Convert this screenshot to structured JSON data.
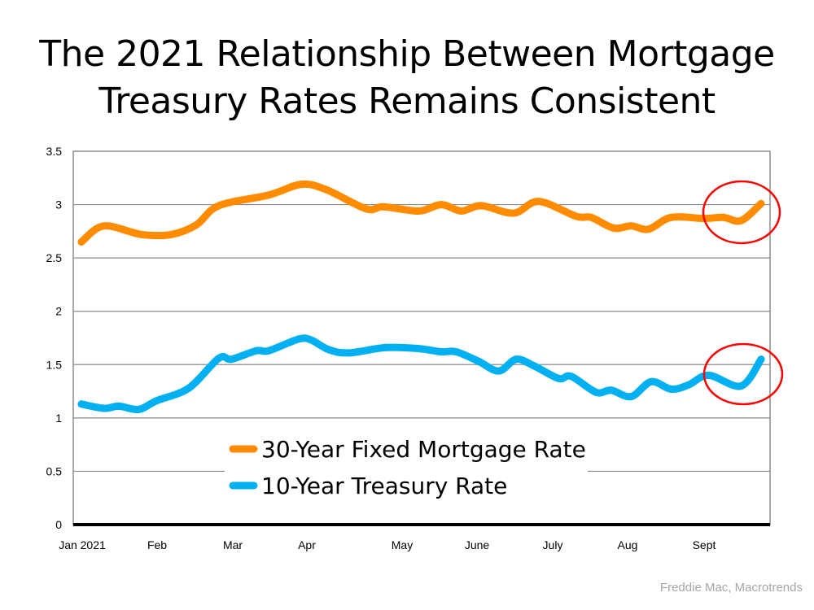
{
  "chart_data": {
    "type": "line",
    "title": "The 2021 Relationship Between Mortgage Treasury Rates Remains Consistent",
    "title_lines": [
      "The 2021 Relationship Between Mortgage",
      "Treasury Rates Remains Consistent"
    ],
    "xlabel": "",
    "ylabel": "",
    "ylim": [
      0,
      3.5
    ],
    "y_ticks": [
      "0",
      "0.5",
      "1",
      "1.5",
      "2",
      "2.5",
      "3",
      "3.5"
    ],
    "x_tick_labels": [
      "Jan 2021",
      "Feb",
      "Mar",
      "Apr",
      "May",
      "June",
      "July",
      "Aug",
      "Sept"
    ],
    "grid": true,
    "legend_placement": "bottom-center",
    "series": [
      {
        "name": "30-Year Fixed Mortgage Rate",
        "color": "#FF8C00",
        "x": [
          "2021-01-01",
          "2021-01-10",
          "2021-01-25",
          "2021-02-06",
          "2021-02-16",
          "2021-02-25",
          "2021-03-17",
          "2021-03-30",
          "2021-04-09",
          "2021-04-25",
          "2021-05-02",
          "2021-05-16",
          "2021-05-25",
          "2021-06-02",
          "2021-06-10",
          "2021-06-23",
          "2021-07-03",
          "2021-07-18",
          "2021-07-24",
          "2021-08-02",
          "2021-08-09",
          "2021-08-16",
          "2021-08-25",
          "2021-09-07",
          "2021-09-15",
          "2021-09-22",
          "2021-09-30"
        ],
        "values": [
          2.65,
          2.8,
          2.72,
          2.72,
          2.81,
          2.99,
          3.09,
          3.19,
          3.14,
          2.96,
          2.98,
          2.94,
          3.0,
          2.94,
          2.99,
          2.92,
          3.03,
          2.89,
          2.88,
          2.78,
          2.8,
          2.77,
          2.88,
          2.87,
          2.88,
          2.85,
          3.01
        ]
      },
      {
        "name": "10-Year Treasury Rate",
        "color": "#00B0F0",
        "x": [
          "2021-01-01",
          "2021-01-10",
          "2021-01-16",
          "2021-01-24",
          "2021-01-31",
          "2021-02-13",
          "2021-02-25",
          "2021-03-02",
          "2021-03-12",
          "2021-03-17",
          "2021-03-29",
          "2021-04-03",
          "2021-04-10",
          "2021-04-18",
          "2021-05-03",
          "2021-05-16",
          "2021-05-25",
          "2021-05-31",
          "2021-06-09",
          "2021-06-17",
          "2021-06-24",
          "2021-07-01",
          "2021-07-11",
          "2021-07-16",
          "2021-07-26",
          "2021-08-01",
          "2021-08-09",
          "2021-08-17",
          "2021-08-25",
          "2021-09-01",
          "2021-09-09",
          "2021-09-22",
          "2021-09-30"
        ],
        "values": [
          1.13,
          1.09,
          1.11,
          1.08,
          1.16,
          1.28,
          1.56,
          1.55,
          1.63,
          1.63,
          1.74,
          1.73,
          1.64,
          1.61,
          1.66,
          1.65,
          1.62,
          1.62,
          1.53,
          1.44,
          1.55,
          1.49,
          1.37,
          1.39,
          1.24,
          1.26,
          1.2,
          1.34,
          1.27,
          1.31,
          1.4,
          1.3,
          1.55
        ]
      }
    ],
    "annotations": [
      {
        "type": "circle",
        "color": "#FF0000",
        "series": "30-Year Fixed Mortgage Rate",
        "around": "2021-09"
      },
      {
        "type": "circle",
        "color": "#FF0000",
        "series": "10-Year Treasury Rate",
        "around": "2021-09"
      }
    ],
    "source": "Freddie Mac, Macrotrends"
  }
}
